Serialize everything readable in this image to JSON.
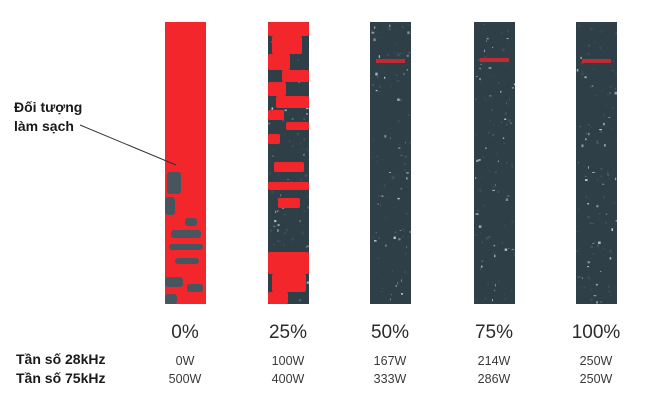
{
  "callout": {
    "line1": "Đối tượng",
    "line2": "làm sạch"
  },
  "rows": {
    "freq28_label": "Tần số 28kHz",
    "freq75_label": "Tần số 75kHz"
  },
  "columns": [
    {
      "percent": "0%",
      "w28": "0W",
      "w75": "500W",
      "red_fraction": 0.82
    },
    {
      "percent": "25%",
      "w28": "100W",
      "w75": "400W",
      "red_fraction": 0.45
    },
    {
      "percent": "50%",
      "w28": "167W",
      "w75": "333W",
      "red_fraction": 0.02
    },
    {
      "percent": "75%",
      "w28": "214W",
      "w75": "286W",
      "red_fraction": 0.03
    },
    {
      "percent": "100%",
      "w28": "250W",
      "w75": "250W",
      "red_fraction": 0.02
    }
  ],
  "colors": {
    "red": "#f2262b",
    "dark": "#2f3f48",
    "mid": "#46555e",
    "speck": "#c9d2d6"
  }
}
